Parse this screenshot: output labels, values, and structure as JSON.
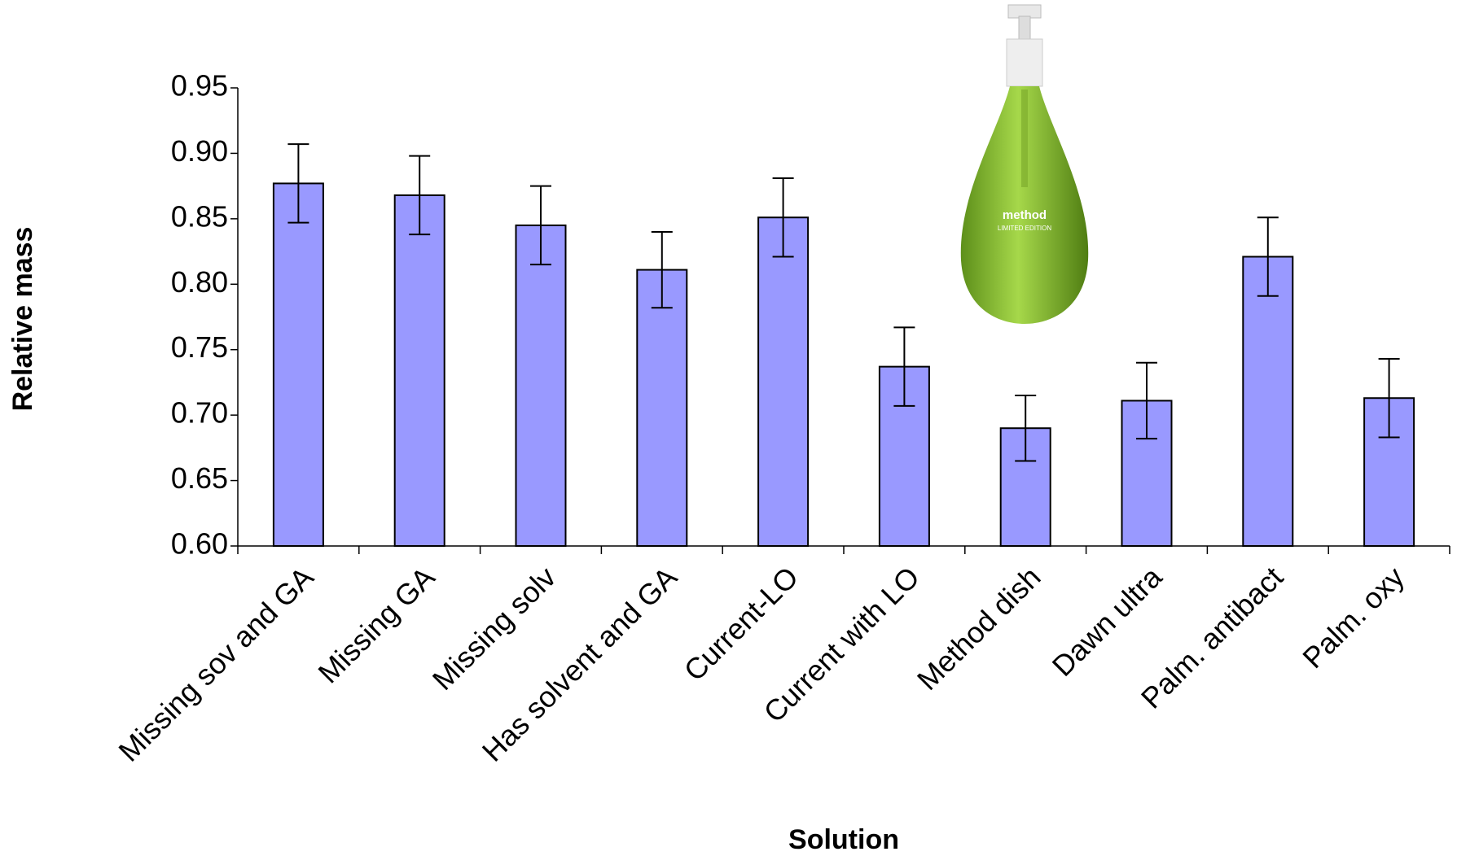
{
  "chart_data": {
    "type": "bar",
    "x_label": "Solution",
    "y_label": "Relative mass",
    "categories": [
      "Missing sov and GA",
      "Missing GA",
      "Missing solv",
      "Has solvent and GA",
      "Current-LO",
      "Current with LO",
      "Method dish",
      "Dawn ultra",
      "Palm. antibact",
      "Palm. oxy"
    ],
    "values": [
      0.877,
      0.868,
      0.845,
      0.811,
      0.851,
      0.737,
      0.69,
      0.711,
      0.821,
      0.713
    ],
    "errors": [
      0.03,
      0.03,
      0.03,
      0.029,
      0.03,
      0.03,
      0.025,
      0.029,
      0.03,
      0.03
    ],
    "color": "#9999ff",
    "ylim": [
      0.6,
      0.95
    ],
    "yticks": [
      {
        "value": 0.6,
        "label": "0.60"
      },
      {
        "value": 0.65,
        "label": "0.65"
      },
      {
        "value": 0.7,
        "label": "0.70"
      },
      {
        "value": 0.75,
        "label": "0.75"
      },
      {
        "value": 0.8,
        "label": "0.80"
      },
      {
        "value": 0.85,
        "label": "0.85"
      },
      {
        "value": 0.9,
        "label": "0.90"
      },
      {
        "value": 0.95,
        "label": "0.95"
      }
    ],
    "grid": false,
    "annotations": [
      "method",
      "LIMITED EDITION"
    ]
  }
}
